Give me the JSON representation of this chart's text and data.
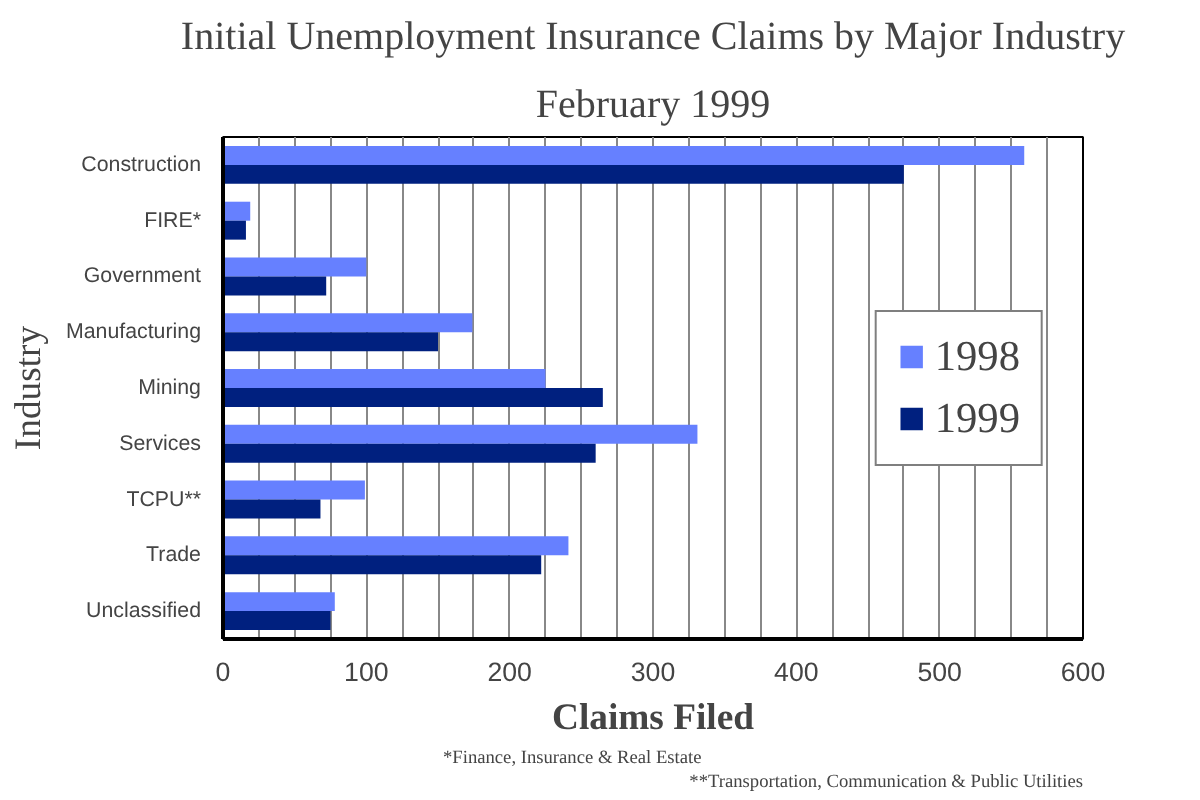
{
  "chart_data": {
    "type": "bar",
    "orientation": "horizontal",
    "title": "Initial Unemployment Insurance Claims by Major Industry",
    "subtitle": "February 1999",
    "xlabel": "Claims Filed",
    "ylabel": "Industry",
    "categories": [
      "Construction",
      "FIRE*",
      "Government",
      "Manufacturing",
      "Mining",
      "Services",
      "TCPU**",
      "Trade",
      "Unclassified"
    ],
    "series": [
      {
        "name": "1998",
        "color": "#6680ff",
        "values": [
          559,
          19,
          100,
          174,
          225,
          331,
          99,
          241,
          78
        ]
      },
      {
        "name": "1999",
        "color": "#00207f",
        "values": [
          475,
          16,
          72,
          150,
          265,
          260,
          68,
          222,
          75
        ]
      }
    ],
    "xlim": [
      0,
      600
    ],
    "xticks": [
      0,
      {
        "value": 25,
        "label": null
      },
      {
        "value": 50,
        "label": null
      },
      {
        "value": 75,
        "label": null
      },
      100,
      {
        "value": 125,
        "label": null
      },
      {
        "value": 150,
        "label": null
      },
      {
        "value": 175,
        "label": null
      },
      200,
      {
        "value": 225,
        "label": null
      },
      {
        "value": 250,
        "label": null
      },
      {
        "value": 275,
        "label": null
      },
      300,
      {
        "value": 325,
        "label": null
      },
      {
        "value": 350,
        "label": null
      },
      {
        "value": 375,
        "label": null
      },
      400,
      {
        "value": 425,
        "label": null
      },
      {
        "value": 450,
        "label": null
      },
      {
        "value": 475,
        "label": null
      },
      500,
      {
        "value": 525,
        "label": null
      },
      {
        "value": 550,
        "label": null
      },
      {
        "value": 575,
        "label": null
      },
      600
    ],
    "grid": "x",
    "legend": "right",
    "annotations": [
      "*Finance, Insurance & Real Estate",
      "**Transportation, Communication & Public Utilities"
    ]
  }
}
